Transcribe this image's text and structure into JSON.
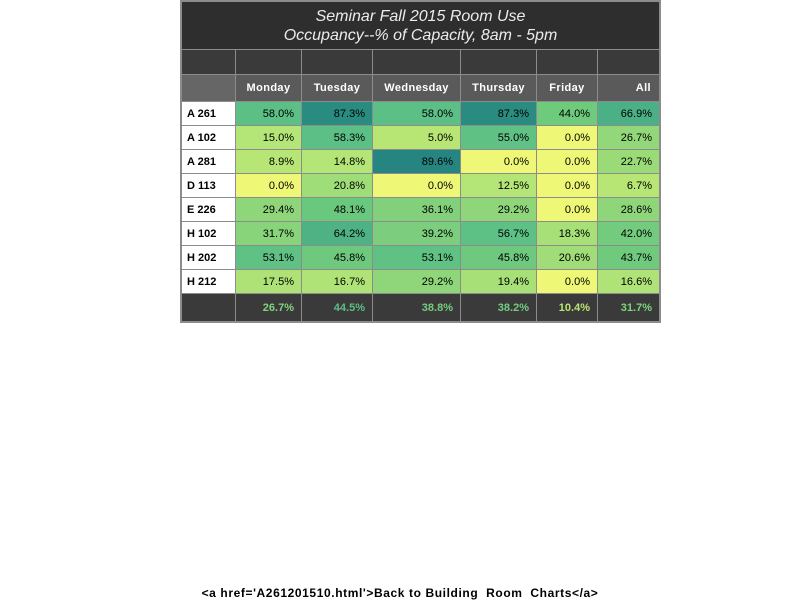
{
  "title": {
    "line1": "Seminar Fall 2015   Room Use",
    "line2": "Occupancy--% of Capacity, 8am - 5pm"
  },
  "columns": [
    "Monday",
    "Tuesday",
    "Wednesday",
    "Thursday",
    "Friday",
    "All"
  ],
  "rows": [
    {
      "room": "A 261",
      "values": [
        "58.0%",
        "87.3%",
        "58.0%",
        "87.3%",
        "44.0%",
        "66.9%"
      ],
      "colors": [
        "#5cbf85",
        "#2a8c80",
        "#5cbf85",
        "#2a8c80",
        "#6ecb7c",
        "#4bb085"
      ]
    },
    {
      "room": "A 102",
      "values": [
        "15.0%",
        "58.3%",
        "5.0%",
        "55.0%",
        "0.0%",
        "26.7%"
      ],
      "colors": [
        "#b4e677",
        "#5cbf85",
        "#b8e675",
        "#5fc184",
        "#eef876",
        "#92d87a"
      ]
    },
    {
      "room": "A 281",
      "values": [
        "8.9%",
        "14.8%",
        "89.6%",
        "0.0%",
        "0.0%",
        "22.7%"
      ],
      "colors": [
        "#b7e676",
        "#b4e677",
        "#278581",
        "#eef876",
        "#eef876",
        "#9adb78"
      ]
    },
    {
      "room": "D 113",
      "values": [
        "0.0%",
        "20.8%",
        "0.0%",
        "12.5%",
        "0.0%",
        "6.7%"
      ],
      "colors": [
        "#eef876",
        "#9fdd78",
        "#eef876",
        "#b4e677",
        "#eef876",
        "#b8e675"
      ]
    },
    {
      "room": "E 226",
      "values": [
        "29.4%",
        "48.1%",
        "36.1%",
        "29.2%",
        "0.0%",
        "28.6%"
      ],
      "colors": [
        "#8fd67b",
        "#6ac77e",
        "#82d07c",
        "#8fd67b",
        "#eef876",
        "#8fd67b"
      ]
    },
    {
      "room": "H 102",
      "values": [
        "31.7%",
        "64.2%",
        "39.2%",
        "56.7%",
        "18.3%",
        "42.0%"
      ],
      "colors": [
        "#88d47b",
        "#4eb285",
        "#7ccd7d",
        "#5dc084",
        "#a6e077",
        "#73cb7e"
      ]
    },
    {
      "room": "H 202",
      "values": [
        "53.1%",
        "45.8%",
        "53.1%",
        "45.8%",
        "20.6%",
        "43.7%"
      ],
      "colors": [
        "#5fc184",
        "#6ec97e",
        "#5fc184",
        "#6ec97e",
        "#a0dd78",
        "#70ca7e"
      ]
    },
    {
      "room": "H 212",
      "values": [
        "17.5%",
        "16.7%",
        "29.2%",
        "19.4%",
        "0.0%",
        "16.6%"
      ],
      "colors": [
        "#aee277",
        "#b0e377",
        "#8fd67b",
        "#a7e077",
        "#eef876",
        "#b0e377"
      ]
    }
  ],
  "totals": {
    "values": [
      "26.7%",
      "44.5%",
      "38.8%",
      "38.2%",
      "10.4%",
      "31.7%"
    ],
    "colors": [
      "#7fd47d",
      "#5cbf85",
      "#74cd7e",
      "#74cd7e",
      "#b8e675",
      "#7fd47d"
    ]
  },
  "footer": {
    "link_text": "<a href='A261201510.html'>Back to Building  Room  Charts</a>"
  }
}
